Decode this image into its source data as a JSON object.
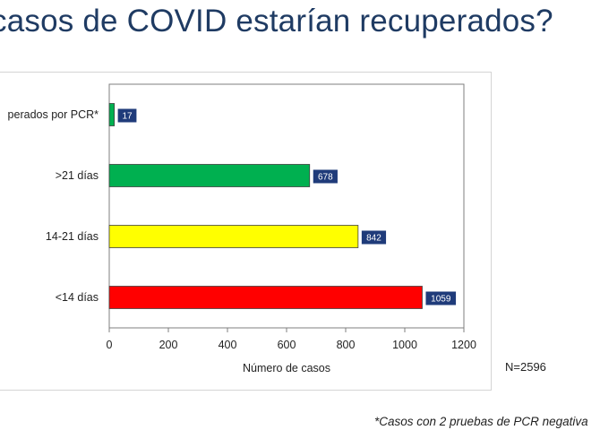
{
  "title": "casos de COVID estarían recuperados?",
  "footnote": "*Casos con 2 pruebas de PCR negativa",
  "n_label": "N=2596",
  "chart_data": {
    "type": "bar",
    "orientation": "horizontal",
    "categories": [
      "perados por PCR*",
      ">21 días",
      "14-21 días",
      "<14 días"
    ],
    "values": [
      17,
      678,
      842,
      1059
    ],
    "colors": [
      "#00b050",
      "#00b050",
      "#ffff00",
      "#ff0000"
    ],
    "label_box_color": "#1f3b7a",
    "xlabel": "Número de casos",
    "ylabel": "",
    "xlim": [
      0,
      1200
    ],
    "xticks": [
      0,
      200,
      400,
      600,
      800,
      1000,
      1200
    ],
    "grid": false,
    "legend": "none"
  }
}
